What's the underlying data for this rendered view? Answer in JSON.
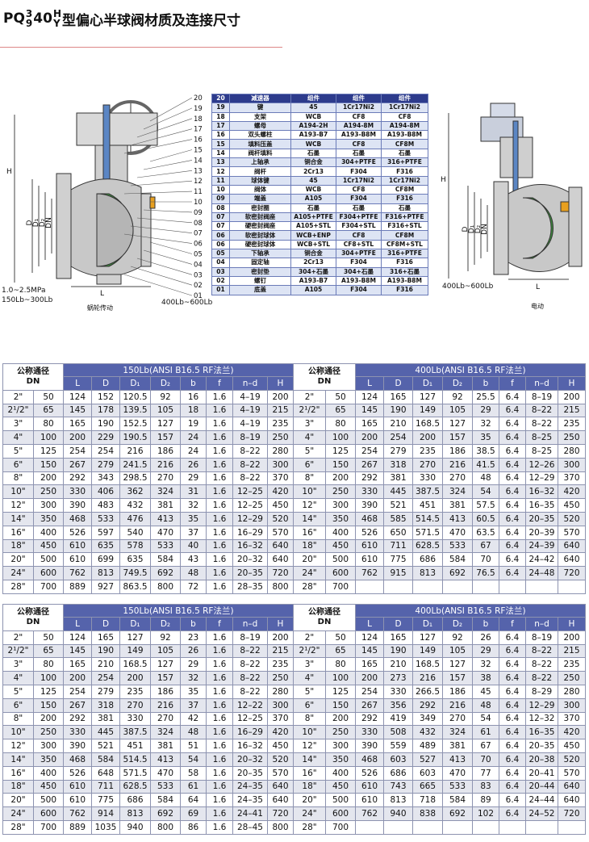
{
  "title": {
    "prefix": "PQ",
    "sup1": "3",
    "sub1": "9",
    "mid": "40",
    "sup2": "H",
    "sub2": "Y",
    "text": "型偏心半球阀材质及连接尺寸"
  },
  "left_diagram": {
    "part_numbers": [
      "20",
      "19",
      "18",
      "17",
      "16",
      "15",
      "14",
      "13",
      "12",
      "11",
      "10",
      "09",
      "08",
      "07",
      "06",
      "05",
      "04",
      "03",
      "02",
      "01"
    ],
    "height_label": "H",
    "diameter_labels": [
      "D",
      "D₁",
      "D₂",
      "DN"
    ],
    "length_label": "L",
    "pressure_labels": [
      "1.0~2.5MPa",
      "150Lb~300Lb"
    ],
    "flange_label": "400Lb~600Lb",
    "caption": "蜗轮传动"
  },
  "materials_table": {
    "rows": [
      [
        "20",
        "减速器",
        "组件",
        "组件",
        "组件"
      ],
      [
        "19",
        "键",
        "45",
        "1Cr17Ni2",
        "1Cr17Ni2"
      ],
      [
        "18",
        "支架",
        "WCB",
        "CF8",
        "CF8"
      ],
      [
        "17",
        "螺母",
        "A194-2H",
        "A194-8M",
        "A194-8M"
      ],
      [
        "16",
        "双头螺柱",
        "A193-B7",
        "A193-B8M",
        "A193-B8M"
      ],
      [
        "15",
        "填料压盖",
        "WCB",
        "CF8",
        "CF8M"
      ],
      [
        "14",
        "阀杆填料",
        "石墨",
        "石墨",
        "石墨"
      ],
      [
        "13",
        "上轴承",
        "铜合金",
        "304+PTFE",
        "316+PTFE"
      ],
      [
        "12",
        "阀杆",
        "2Cr13",
        "F304",
        "F316"
      ],
      [
        "11",
        "球体键",
        "45",
        "1Cr17Ni2",
        "1Cr17Ni2"
      ],
      [
        "10",
        "阀体",
        "WCB",
        "CF8",
        "CF8M"
      ],
      [
        "09",
        "端盖",
        "A105",
        "F304",
        "F316"
      ],
      [
        "08",
        "密封圈",
        "石墨",
        "石墨",
        "石墨"
      ],
      [
        "07",
        "软密封阀座",
        "A105+PTFE",
        "F304+PTFE",
        "F316+PTFE"
      ],
      [
        "07",
        "硬密封阀座",
        "A105+STL",
        "F304+STL",
        "F316+STL"
      ],
      [
        "06",
        "软密封球体",
        "WCB+ENP",
        "CF8",
        "CF8M"
      ],
      [
        "06",
        "硬密封球体",
        "WCB+STL",
        "CF8+STL",
        "CF8M+STL"
      ],
      [
        "05",
        "下轴承",
        "铜合金",
        "304+PTFE",
        "316+PTFE"
      ],
      [
        "04",
        "固定轴",
        "2Cr13",
        "F304",
        "F316"
      ],
      [
        "03",
        "密封垫",
        "304+石墨",
        "304+石墨",
        "316+石墨"
      ],
      [
        "02",
        "螺钉",
        "A193-B7",
        "A193-B8M",
        "A193-B8M"
      ],
      [
        "01",
        "底盖",
        "A105",
        "F304",
        "F316"
      ]
    ]
  },
  "right_diagram": {
    "diameter_labels": [
      "D",
      "D₁",
      "D₂",
      "DN"
    ],
    "height_label": "H",
    "length_label": "L",
    "flange_label": "400Lb~600Lb",
    "caption": "电动"
  },
  "dimension_tables": [
    {
      "halves": [
        {
          "dn_header": [
            "公称通径",
            "DN"
          ],
          "header": "150Lb(ANSI B16.5 RF法兰)",
          "columns": [
            "L",
            "D",
            "D₁",
            "D₂",
            "b",
            "f",
            "n–d",
            "H"
          ],
          "rows": [
            [
              "2\"",
              50,
              124,
              152,
              120.5,
              92,
              16,
              1.6,
              "4–19",
              200
            ],
            [
              "2¹/2\"",
              65,
              145,
              178,
              139.5,
              105,
              18,
              1.6,
              "4–19",
              215
            ],
            [
              "3\"",
              80,
              165,
              190,
              152.5,
              127,
              19,
              1.6,
              "4–19",
              235
            ],
            [
              "4\"",
              100,
              200,
              229,
              190.5,
              157,
              24,
              1.6,
              "8–19",
              250
            ],
            [
              "5\"",
              125,
              254,
              254,
              216,
              186,
              24,
              1.6,
              "8–22",
              280
            ],
            [
              "6\"",
              150,
              267,
              279,
              241.5,
              216,
              26,
              1.6,
              "8–22",
              300
            ],
            [
              "8\"",
              200,
              292,
              343,
              298.5,
              270,
              29,
              1.6,
              "8–22",
              370
            ],
            [
              "10\"",
              250,
              330,
              406,
              362,
              324,
              31,
              1.6,
              "12–25",
              420
            ],
            [
              "12\"",
              300,
              390,
              483,
              432,
              381,
              32,
              1.6,
              "12–25",
              450
            ],
            [
              "14\"",
              350,
              468,
              533,
              476,
              413,
              35,
              1.6,
              "12–29",
              520
            ],
            [
              "16\"",
              400,
              526,
              597,
              540,
              470,
              37,
              1.6,
              "16–29",
              570
            ],
            [
              "18\"",
              450,
              610,
              635,
              578,
              533,
              40,
              1.6,
              "16–32",
              640
            ],
            [
              "20\"",
              500,
              610,
              699,
              635,
              584,
              43,
              1.6,
              "20–32",
              640
            ],
            [
              "24\"",
              600,
              762,
              813,
              749.5,
              692,
              48,
              1.6,
              "20–35",
              720
            ],
            [
              "28\"",
              700,
              889,
              927,
              863.5,
              800,
              72,
              1.6,
              "28–35",
              800
            ]
          ]
        },
        {
          "dn_header": [
            "公称通径",
            "DN"
          ],
          "header": "400Lb(ANSI B16.5 RF法兰)",
          "columns": [
            "L",
            "D",
            "D₁",
            "D₂",
            "b",
            "f",
            "n–d",
            "H"
          ],
          "rows": [
            [
              "2\"",
              50,
              124,
              165,
              127,
              92,
              25.5,
              6.4,
              "8–19",
              200
            ],
            [
              "2¹/2\"",
              65,
              145,
              190,
              149,
              105,
              29,
              6.4,
              "8–22",
              215
            ],
            [
              "3\"",
              80,
              165,
              210,
              168.5,
              127,
              32,
              6.4,
              "8–22",
              235
            ],
            [
              "4\"",
              100,
              200,
              254,
              200,
              157,
              35,
              6.4,
              "8–25",
              250
            ],
            [
              "5\"",
              125,
              254,
              279,
              235,
              186,
              38.5,
              6.4,
              "8–25",
              280
            ],
            [
              "6\"",
              150,
              267,
              318,
              270,
              216,
              41.5,
              6.4,
              "12–26",
              300
            ],
            [
              "8\"",
              200,
              292,
              381,
              330,
              270,
              48,
              6.4,
              "12–29",
              370
            ],
            [
              "10\"",
              250,
              330,
              445,
              387.5,
              324,
              54,
              6.4,
              "16–32",
              420
            ],
            [
              "12\"",
              300,
              390,
              521,
              451,
              381,
              57.5,
              6.4,
              "16–35",
              450
            ],
            [
              "14\"",
              350,
              468,
              585,
              514.5,
              413,
              60.5,
              6.4,
              "20–35",
              520
            ],
            [
              "16\"",
              400,
              526,
              650,
              571.5,
              470,
              63.5,
              6.4,
              "20–39",
              570
            ],
            [
              "18\"",
              450,
              610,
              711,
              628.5,
              533,
              67,
              6.4,
              "24–39",
              640
            ],
            [
              "20\"",
              500,
              610,
              775,
              686,
              584,
              70,
              6.4,
              "24–42",
              640
            ],
            [
              "24\"",
              600,
              762,
              915,
              813,
              692,
              76.5,
              6.4,
              "24–48",
              720
            ],
            [
              "28\"",
              700
            ]
          ]
        }
      ]
    },
    {
      "halves": [
        {
          "dn_header": [
            "公称通径",
            "DN"
          ],
          "header": "150Lb(ANSI B16.5 RF法兰)",
          "columns": [
            "L",
            "D",
            "D₁",
            "D₂",
            "b",
            "f",
            "n–d",
            "H"
          ],
          "rows": [
            [
              "2\"",
              50,
              124,
              165,
              127,
              92,
              23,
              1.6,
              "8–19",
              200
            ],
            [
              "2¹/2\"",
              65,
              145,
              190,
              149,
              105,
              26,
              1.6,
              "8–22",
              215
            ],
            [
              "3\"",
              80,
              165,
              210,
              168.5,
              127,
              29,
              1.6,
              "8–22",
              235
            ],
            [
              "4\"",
              100,
              200,
              254,
              200,
              157,
              32,
              1.6,
              "8–22",
              250
            ],
            [
              "5\"",
              125,
              254,
              279,
              235,
              186,
              35,
              1.6,
              "8–22",
              280
            ],
            [
              "6\"",
              150,
              267,
              318,
              270,
              216,
              37,
              1.6,
              "12–22",
              300
            ],
            [
              "8\"",
              200,
              292,
              381,
              330,
              270,
              42,
              1.6,
              "12–25",
              370
            ],
            [
              "10\"",
              250,
              330,
              445,
              387.5,
              324,
              48,
              1.6,
              "16–29",
              420
            ],
            [
              "12\"",
              300,
              390,
              521,
              451,
              381,
              51,
              1.6,
              "16–32",
              450
            ],
            [
              "14\"",
              350,
              468,
              584,
              514.5,
              413,
              54,
              1.6,
              "20–32",
              520
            ],
            [
              "16\"",
              400,
              526,
              648,
              571.5,
              470,
              58,
              1.6,
              "20–35",
              570
            ],
            [
              "18\"",
              450,
              610,
              711,
              628.5,
              533,
              61,
              1.6,
              "24–35",
              640
            ],
            [
              "20\"",
              500,
              610,
              775,
              686,
              584,
              64,
              1.6,
              "24–35",
              640
            ],
            [
              "24\"",
              600,
              762,
              914,
              813,
              692,
              69,
              1.6,
              "24–41",
              720
            ],
            [
              "28\"",
              700,
              889,
              1035,
              940,
              800,
              86,
              1.6,
              "28–45",
              800
            ]
          ]
        },
        {
          "dn_header": [
            "公称通径",
            "DN"
          ],
          "header": "400Lb(ANSI B16.5 RF法兰)",
          "columns": [
            "L",
            "D",
            "D₁",
            "D₂",
            "b",
            "f",
            "n–d",
            "H"
          ],
          "rows": [
            [
              "2\"",
              50,
              124,
              165,
              127,
              92,
              26,
              6.4,
              "8–19",
              200
            ],
            [
              "2¹/2\"",
              65,
              145,
              190,
              149,
              105,
              29,
              6.4,
              "8–22",
              215
            ],
            [
              "3\"",
              80,
              165,
              210,
              168.5,
              127,
              32,
              6.4,
              "8–22",
              235
            ],
            [
              "4\"",
              100,
              200,
              273,
              216,
              157,
              38,
              6.4,
              "8–22",
              250
            ],
            [
              "5\"",
              125,
              254,
              330,
              266.5,
              186,
              45,
              6.4,
              "8–29",
              280
            ],
            [
              "6\"",
              150,
              267,
              356,
              292,
              216,
              48,
              6.4,
              "12–29",
              300
            ],
            [
              "8\"",
              200,
              292,
              419,
              349,
              270,
              54,
              6.4,
              "12–32",
              370
            ],
            [
              "10\"",
              250,
              330,
              508,
              432,
              324,
              61,
              6.4,
              "16–35",
              420
            ],
            [
              "12\"",
              300,
              390,
              559,
              489,
              381,
              67,
              6.4,
              "20–35",
              450
            ],
            [
              "14\"",
              350,
              468,
              603,
              527,
              413,
              70,
              6.4,
              "20–38",
              520
            ],
            [
              "16\"",
              400,
              526,
              686,
              603,
              470,
              77,
              6.4,
              "20–41",
              570
            ],
            [
              "18\"",
              450,
              610,
              743,
              665,
              533,
              83,
              6.4,
              "20–44",
              640
            ],
            [
              "20\"",
              500,
              610,
              813,
              718,
              584,
              89,
              6.4,
              "24–44",
              640
            ],
            [
              "24\"",
              600,
              762,
              940,
              838,
              692,
              102,
              6.4,
              "24–52",
              720
            ],
            [
              "28\"",
              700
            ]
          ]
        }
      ]
    }
  ]
}
